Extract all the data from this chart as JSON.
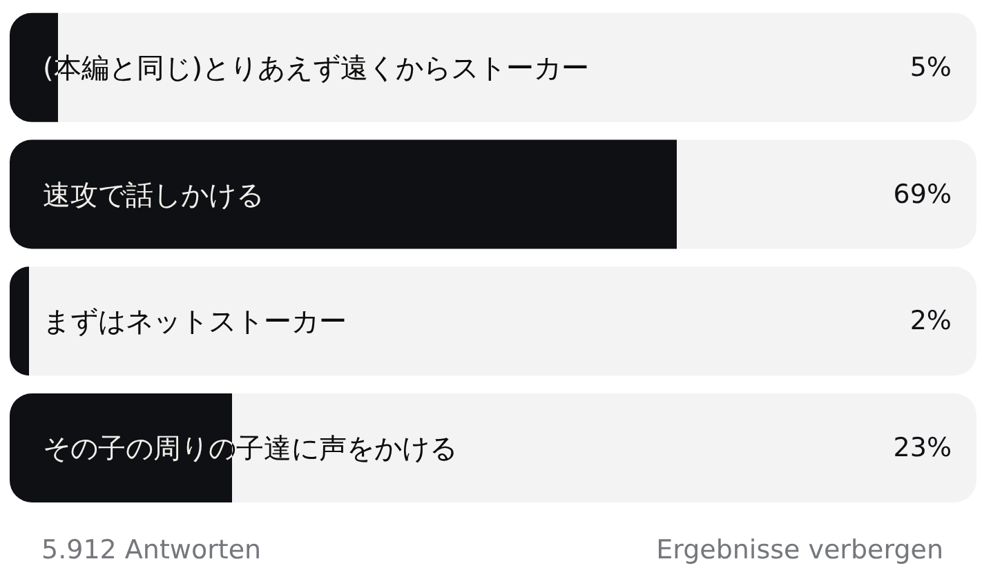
{
  "chart_data": {
    "type": "bar",
    "orientation": "horizontal",
    "categories": [
      "(本編と同じ)とりあえず遠くからストーカー",
      "速攻で話しかける",
      "まずはネットストーカー",
      "その子の周りの子達に声をかける"
    ],
    "values": [
      5,
      69,
      2,
      23
    ],
    "color": "#0e1014",
    "value_labels": [
      "5%",
      "69%",
      "2%",
      "23%"
    ],
    "xlim": [
      0,
      100
    ],
    "tick_labels": "y",
    "annotations": [
      "5.912 Antworten",
      "Ergebnisse verbergen"
    ]
  }
}
